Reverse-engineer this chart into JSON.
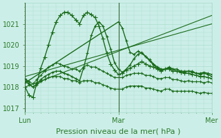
{
  "title": "",
  "xlabel": "Pression niveau de la mer( hPa )",
  "bg_color": "#cceee8",
  "grid_color": "#aaddcc",
  "line_color": "#1a6b1a",
  "ylim": [
    1016.8,
    1022.0
  ],
  "xlim": [
    0,
    48
  ],
  "xtick_positions": [
    0,
    24,
    48
  ],
  "xticklabels": [
    "Lun",
    "Mar",
    "Mer"
  ],
  "ytick_positions": [
    1017,
    1018,
    1019,
    1020,
    1021
  ],
  "font_color": "#2a7a2a",
  "font_size": 7,
  "xlabel_fontsize": 8,
  "series": [
    {
      "x": [
        0,
        1,
        2,
        3,
        4,
        5,
        6,
        7,
        8,
        9,
        10,
        11,
        12,
        13,
        14,
        15,
        16,
        17,
        18,
        19,
        20,
        21,
        22,
        23,
        24,
        25,
        26,
        27,
        28,
        29,
        30,
        31,
        32,
        33,
        34,
        35,
        36,
        37,
        38,
        39,
        40,
        41,
        42,
        43,
        44,
        45,
        46,
        47,
        48
      ],
      "y": [
        1018.0,
        1017.6,
        1017.5,
        1018.2,
        1018.9,
        1019.4,
        1020.0,
        1020.6,
        1021.1,
        1021.4,
        1021.55,
        1021.55,
        1021.4,
        1021.2,
        1021.0,
        1021.4,
        1021.55,
        1021.45,
        1021.3,
        1020.9,
        1020.3,
        1019.6,
        1019.1,
        1018.8,
        1018.6,
        1018.65,
        1018.8,
        1018.9,
        1019.0,
        1019.1,
        1019.2,
        1019.1,
        1019.0,
        1018.95,
        1018.85,
        1018.75,
        1018.85,
        1018.85,
        1018.75,
        1018.75,
        1018.7,
        1018.65,
        1018.65,
        1018.6,
        1018.55,
        1018.5,
        1018.5,
        1018.45,
        1018.4
      ],
      "marker": "+",
      "markersize": 4,
      "linewidth": 1.0,
      "linestyle": "-"
    },
    {
      "x": [
        0,
        48
      ],
      "y": [
        1018.0,
        1021.4
      ],
      "marker": "None",
      "markersize": 0,
      "linewidth": 0.8,
      "linestyle": "-"
    },
    {
      "x": [
        0,
        48
      ],
      "y": [
        1018.5,
        1021.0
      ],
      "marker": "None",
      "markersize": 0,
      "linewidth": 0.8,
      "linestyle": "-"
    },
    {
      "x": [
        0,
        24,
        25,
        26,
        27,
        28,
        29,
        30,
        31,
        32,
        33,
        34,
        35,
        36,
        37,
        38,
        39,
        40,
        41,
        42,
        43,
        44,
        45,
        46,
        47,
        48
      ],
      "y": [
        1018.2,
        1021.1,
        1020.8,
        1020.2,
        1019.65,
        1019.55,
        1019.7,
        1019.6,
        1019.45,
        1019.3,
        1019.1,
        1018.95,
        1018.85,
        1018.85,
        1018.9,
        1018.85,
        1018.75,
        1018.75,
        1018.75,
        1018.75,
        1018.75,
        1018.65,
        1018.65,
        1018.7,
        1018.65,
        1018.6
      ],
      "marker": "+",
      "markersize": 3.5,
      "linewidth": 1.0,
      "linestyle": "-"
    },
    {
      "x": [
        0,
        1,
        2,
        3,
        4,
        5,
        6,
        7,
        8,
        9,
        10,
        11,
        12,
        13,
        14,
        15,
        16,
        17,
        18,
        19,
        20,
        21,
        22,
        23,
        24,
        25,
        26,
        27,
        28,
        29,
        30,
        31,
        32,
        33,
        34,
        35,
        36,
        37,
        38,
        39,
        40,
        41,
        42,
        43,
        44,
        45,
        46,
        47,
        48
      ],
      "y": [
        1018.4,
        1018.15,
        1018.0,
        1018.15,
        1018.35,
        1018.5,
        1018.6,
        1018.7,
        1018.75,
        1018.75,
        1018.65,
        1018.6,
        1018.5,
        1018.4,
        1018.3,
        1018.9,
        1019.6,
        1020.45,
        1020.9,
        1021.1,
        1020.9,
        1020.4,
        1019.8,
        1019.15,
        1018.85,
        1018.7,
        1018.85,
        1019.05,
        1019.35,
        1019.55,
        1019.65,
        1019.45,
        1019.25,
        1019.05,
        1018.9,
        1018.8,
        1018.85,
        1018.95,
        1018.85,
        1018.85,
        1018.75,
        1018.7,
        1018.75,
        1018.7,
        1018.65,
        1018.6,
        1018.65,
        1018.6,
        1018.5
      ],
      "marker": "+",
      "markersize": 3.5,
      "linewidth": 1.0,
      "linestyle": "-"
    },
    {
      "x": [
        0,
        1,
        2,
        3,
        4,
        5,
        6,
        7,
        8,
        9,
        10,
        11,
        12,
        13,
        14,
        15,
        16,
        17,
        18,
        19,
        20,
        21,
        22,
        23,
        24,
        25,
        26,
        27,
        28,
        29,
        30,
        31,
        32,
        33,
        34,
        35,
        36,
        37,
        38,
        39,
        40,
        41,
        42,
        43,
        44,
        45,
        46,
        47,
        48
      ],
      "y": [
        1018.3,
        1018.1,
        1018.0,
        1018.1,
        1018.25,
        1018.35,
        1018.45,
        1018.5,
        1018.5,
        1018.5,
        1018.4,
        1018.4,
        1018.3,
        1018.3,
        1018.2,
        1018.3,
        1018.3,
        1018.3,
        1018.2,
        1018.2,
        1018.1,
        1018.05,
        1017.95,
        1017.9,
        1017.9,
        1017.9,
        1018.0,
        1018.05,
        1018.05,
        1018.05,
        1018.05,
        1017.95,
        1017.95,
        1017.9,
        1017.85,
        1017.8,
        1017.9,
        1017.9,
        1017.8,
        1017.8,
        1017.8,
        1017.8,
        1017.8,
        1017.8,
        1017.75,
        1017.7,
        1017.75,
        1017.7,
        1017.7
      ],
      "marker": "+",
      "markersize": 3.0,
      "linewidth": 0.8,
      "linestyle": "-"
    },
    {
      "x": [
        0,
        1,
        2,
        3,
        4,
        5,
        6,
        7,
        8,
        9,
        10,
        11,
        12,
        13,
        14,
        15,
        16,
        17,
        18,
        19,
        20,
        21,
        22,
        23,
        24,
        25,
        26,
        27,
        28,
        29,
        30,
        31,
        32,
        33,
        34,
        35,
        36,
        37,
        38,
        39,
        40,
        41,
        42,
        43,
        44,
        45,
        46,
        47,
        48
      ],
      "y": [
        1018.4,
        1018.25,
        1018.15,
        1018.35,
        1018.55,
        1018.75,
        1018.95,
        1019.05,
        1019.15,
        1019.1,
        1019.0,
        1018.95,
        1018.85,
        1018.85,
        1018.75,
        1018.95,
        1019.05,
        1018.95,
        1018.95,
        1018.85,
        1018.75,
        1018.65,
        1018.55,
        1018.45,
        1018.45,
        1018.45,
        1018.55,
        1018.6,
        1018.65,
        1018.65,
        1018.65,
        1018.55,
        1018.55,
        1018.5,
        1018.4,
        1018.4,
        1018.45,
        1018.45,
        1018.35,
        1018.35,
        1018.3,
        1018.25,
        1018.3,
        1018.25,
        1018.25,
        1018.25,
        1018.2,
        1018.25,
        1018.2
      ],
      "marker": "+",
      "markersize": 3.0,
      "linewidth": 0.8,
      "linestyle": "-"
    }
  ],
  "vline_positions": [
    0,
    24,
    48
  ],
  "vline_color": "#336633",
  "vline_lw": 0.8
}
